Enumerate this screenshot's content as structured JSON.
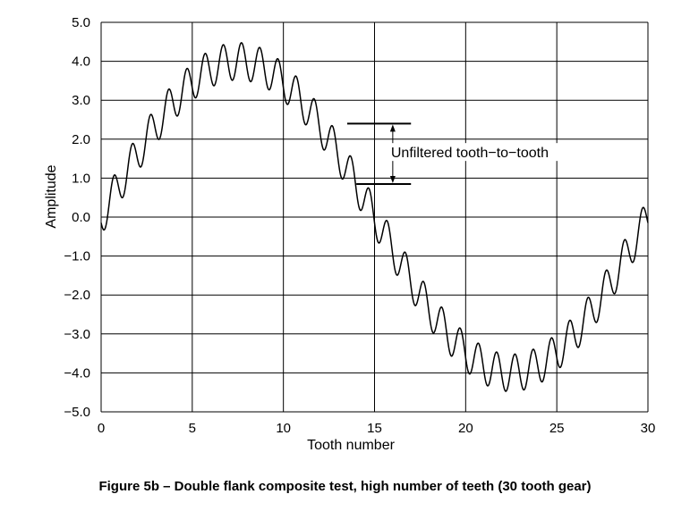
{
  "caption": "Figure 5b – Double flank composite test, high number of teeth (30 tooth gear)",
  "chart_data": {
    "type": "line",
    "xlabel": "Tooth number",
    "ylabel": "Amplitude",
    "xlim": [
      0,
      30
    ],
    "ylim": [
      -5,
      5
    ],
    "x_ticks": [
      0,
      5,
      10,
      15,
      20,
      25,
      30
    ],
    "x_tick_labels": [
      "0",
      "5",
      "10",
      "15",
      "20",
      "25",
      "30"
    ],
    "y_ticks": [
      5,
      4,
      3,
      2,
      1,
      0,
      -1,
      -2,
      -3,
      -4,
      -5
    ],
    "y_tick_labels": [
      "5.0",
      "4.0",
      "3.0",
      "2.0",
      "1.0",
      "0.0",
      "−1.0",
      "−2.0",
      "−3.0",
      "−4.0",
      "−5.0"
    ],
    "grid": true,
    "series": [
      {
        "model": {
          "low_frequency_amplitude": 4.0,
          "low_frequency_period_teeth": 30,
          "tooth_frequency_amplitude": 0.48,
          "tooth_period_teeth": 1,
          "tooth_phase_offset": 0.55
        },
        "x": [
          0,
          1,
          2,
          3,
          4,
          5,
          6,
          7,
          8,
          9,
          10,
          11,
          12,
          13,
          14,
          15,
          16,
          17,
          18,
          19,
          20,
          21,
          22,
          23,
          24,
          25,
          26,
          27,
          28,
          29,
          30
        ],
        "y_tooth_peaks": [
          0.4,
          1.75,
          2.65,
          3.2,
          3.7,
          4.05,
          4.3,
          4.4,
          4.4,
          4.3,
          4.05,
          3.6,
          3.1,
          2.4,
          1.4,
          0.4,
          -0.8,
          -1.65,
          -2.4,
          -3.1,
          -3.6,
          -3.9,
          -3.55,
          -3.5,
          -3.4,
          -3.2,
          -2.8,
          -2.35,
          -1.6,
          -0.65,
          0.4
        ]
      }
    ],
    "annotation": {
      "text": "Unfiltered tooth−to−tooth",
      "upper_level": 2.4,
      "lower_level": 0.85,
      "x_from": 13.5,
      "x_to": 17
    }
  }
}
